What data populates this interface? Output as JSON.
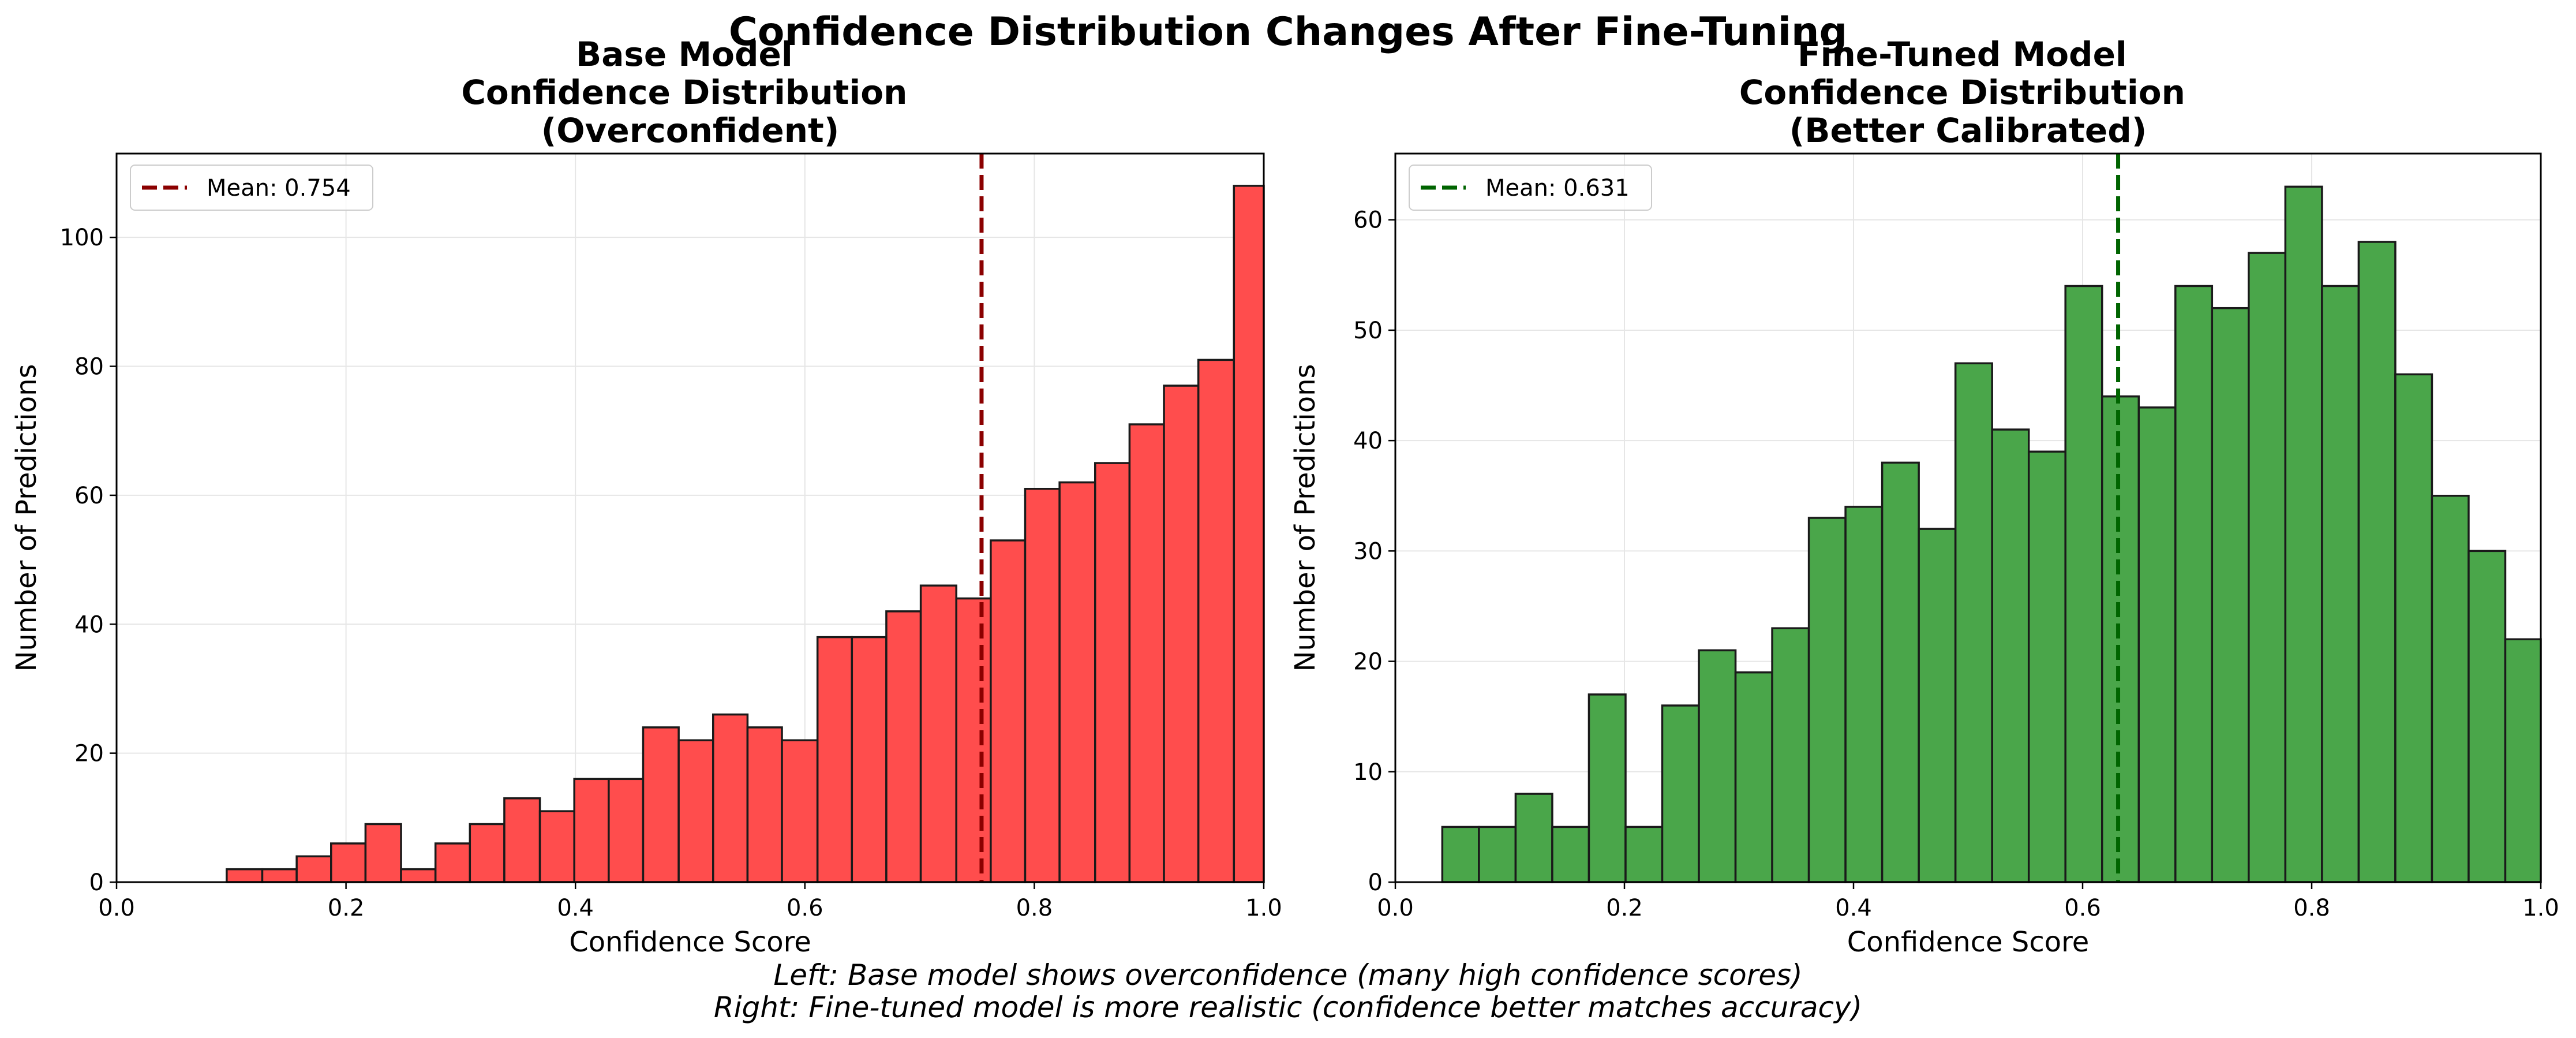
{
  "figure": {
    "suptitle": "Confidence Distribution Changes After Fine-Tuning",
    "caption_lines": [
      "Left: Base model shows overconfidence (many high confidence scores)",
      "Right: Fine-tuned model is more realistic (confidence better matches accuracy)"
    ]
  },
  "chart_data": [
    {
      "type": "bar",
      "title_lines": [
        "Base Model",
        "Confidence Distribution",
        "(Overconfident)"
      ],
      "xlabel": "Confidence Score",
      "ylabel": "Number of Predictions",
      "xlim": [
        0.0,
        1.0
      ],
      "ylim": [
        0,
        113
      ],
      "xticks": [
        "0.0",
        "0.2",
        "0.4",
        "0.6",
        "0.8",
        "1.0"
      ],
      "yticks": [
        0,
        20,
        40,
        60,
        80,
        100
      ],
      "grid": true,
      "bar_color": "#ff4d4d",
      "bar_edge_color": "#1a1a1a",
      "mean": 0.754,
      "mean_line_color": "#8b0000",
      "legend": {
        "label": "Mean: 0.754",
        "position": "upper-left"
      },
      "bins": [
        {
          "x0": 0.096,
          "x1": 0.127,
          "value": 2
        },
        {
          "x0": 0.127,
          "x1": 0.157,
          "value": 2
        },
        {
          "x0": 0.157,
          "x1": 0.187,
          "value": 4
        },
        {
          "x0": 0.187,
          "x1": 0.217,
          "value": 6
        },
        {
          "x0": 0.217,
          "x1": 0.248,
          "value": 9
        },
        {
          "x0": 0.248,
          "x1": 0.278,
          "value": 2
        },
        {
          "x0": 0.278,
          "x1": 0.308,
          "value": 6
        },
        {
          "x0": 0.308,
          "x1": 0.338,
          "value": 9
        },
        {
          "x0": 0.338,
          "x1": 0.369,
          "value": 13
        },
        {
          "x0": 0.369,
          "x1": 0.399,
          "value": 11
        },
        {
          "x0": 0.399,
          "x1": 0.429,
          "value": 16
        },
        {
          "x0": 0.429,
          "x1": 0.459,
          "value": 16
        },
        {
          "x0": 0.459,
          "x1": 0.49,
          "value": 24
        },
        {
          "x0": 0.49,
          "x1": 0.52,
          "value": 22
        },
        {
          "x0": 0.52,
          "x1": 0.55,
          "value": 26
        },
        {
          "x0": 0.55,
          "x1": 0.58,
          "value": 24
        },
        {
          "x0": 0.58,
          "x1": 0.611,
          "value": 22
        },
        {
          "x0": 0.611,
          "x1": 0.641,
          "value": 38
        },
        {
          "x0": 0.641,
          "x1": 0.671,
          "value": 38
        },
        {
          "x0": 0.671,
          "x1": 0.701,
          "value": 42
        },
        {
          "x0": 0.701,
          "x1": 0.732,
          "value": 46
        },
        {
          "x0": 0.732,
          "x1": 0.762,
          "value": 44
        },
        {
          "x0": 0.762,
          "x1": 0.792,
          "value": 53
        },
        {
          "x0": 0.792,
          "x1": 0.822,
          "value": 61
        },
        {
          "x0": 0.822,
          "x1": 0.853,
          "value": 62
        },
        {
          "x0": 0.853,
          "x1": 0.883,
          "value": 65
        },
        {
          "x0": 0.883,
          "x1": 0.913,
          "value": 71
        },
        {
          "x0": 0.913,
          "x1": 0.943,
          "value": 77
        },
        {
          "x0": 0.943,
          "x1": 0.974,
          "value": 81
        },
        {
          "x0": 0.974,
          "x1": 1.0,
          "value": 108
        }
      ]
    },
    {
      "type": "bar",
      "title_lines": [
        "Fine-Tuned Model",
        "Confidence Distribution",
        "(Better Calibrated)"
      ],
      "xlabel": "Confidence Score",
      "ylabel": "Number of Predictions",
      "xlim": [
        0.0,
        1.0
      ],
      "ylim": [
        0,
        66
      ],
      "xticks": [
        "0.0",
        "0.2",
        "0.4",
        "0.6",
        "0.8",
        "1.0"
      ],
      "yticks": [
        0,
        10,
        20,
        30,
        40,
        50,
        60
      ],
      "grid": true,
      "bar_color": "#4aa64a",
      "bar_edge_color": "#1a1a1a",
      "mean": 0.631,
      "mean_line_color": "#006400",
      "legend": {
        "label": "Mean: 0.631",
        "position": "upper-left"
      },
      "bins": [
        {
          "x0": 0.041,
          "x1": 0.073,
          "value": 5
        },
        {
          "x0": 0.073,
          "x1": 0.105,
          "value": 5
        },
        {
          "x0": 0.105,
          "x1": 0.137,
          "value": 8
        },
        {
          "x0": 0.137,
          "x1": 0.169,
          "value": 5
        },
        {
          "x0": 0.169,
          "x1": 0.201,
          "value": 17
        },
        {
          "x0": 0.201,
          "x1": 0.233,
          "value": 5
        },
        {
          "x0": 0.233,
          "x1": 0.265,
          "value": 16
        },
        {
          "x0": 0.265,
          "x1": 0.297,
          "value": 21
        },
        {
          "x0": 0.297,
          "x1": 0.329,
          "value": 19
        },
        {
          "x0": 0.329,
          "x1": 0.361,
          "value": 23
        },
        {
          "x0": 0.361,
          "x1": 0.393,
          "value": 33
        },
        {
          "x0": 0.393,
          "x1": 0.425,
          "value": 34
        },
        {
          "x0": 0.425,
          "x1": 0.457,
          "value": 38
        },
        {
          "x0": 0.457,
          "x1": 0.489,
          "value": 32
        },
        {
          "x0": 0.489,
          "x1": 0.521,
          "value": 47
        },
        {
          "x0": 0.521,
          "x1": 0.553,
          "value": 41
        },
        {
          "x0": 0.553,
          "x1": 0.585,
          "value": 39
        },
        {
          "x0": 0.585,
          "x1": 0.617,
          "value": 54
        },
        {
          "x0": 0.617,
          "x1": 0.649,
          "value": 44
        },
        {
          "x0": 0.649,
          "x1": 0.681,
          "value": 43
        },
        {
          "x0": 0.681,
          "x1": 0.713,
          "value": 54
        },
        {
          "x0": 0.713,
          "x1": 0.745,
          "value": 52
        },
        {
          "x0": 0.745,
          "x1": 0.777,
          "value": 57
        },
        {
          "x0": 0.777,
          "x1": 0.809,
          "value": 63
        },
        {
          "x0": 0.809,
          "x1": 0.841,
          "value": 54
        },
        {
          "x0": 0.841,
          "x1": 0.873,
          "value": 58
        },
        {
          "x0": 0.873,
          "x1": 0.905,
          "value": 46
        },
        {
          "x0": 0.905,
          "x1": 0.937,
          "value": 35
        },
        {
          "x0": 0.937,
          "x1": 0.969,
          "value": 30
        },
        {
          "x0": 0.969,
          "x1": 1.0,
          "value": 22
        }
      ]
    }
  ]
}
